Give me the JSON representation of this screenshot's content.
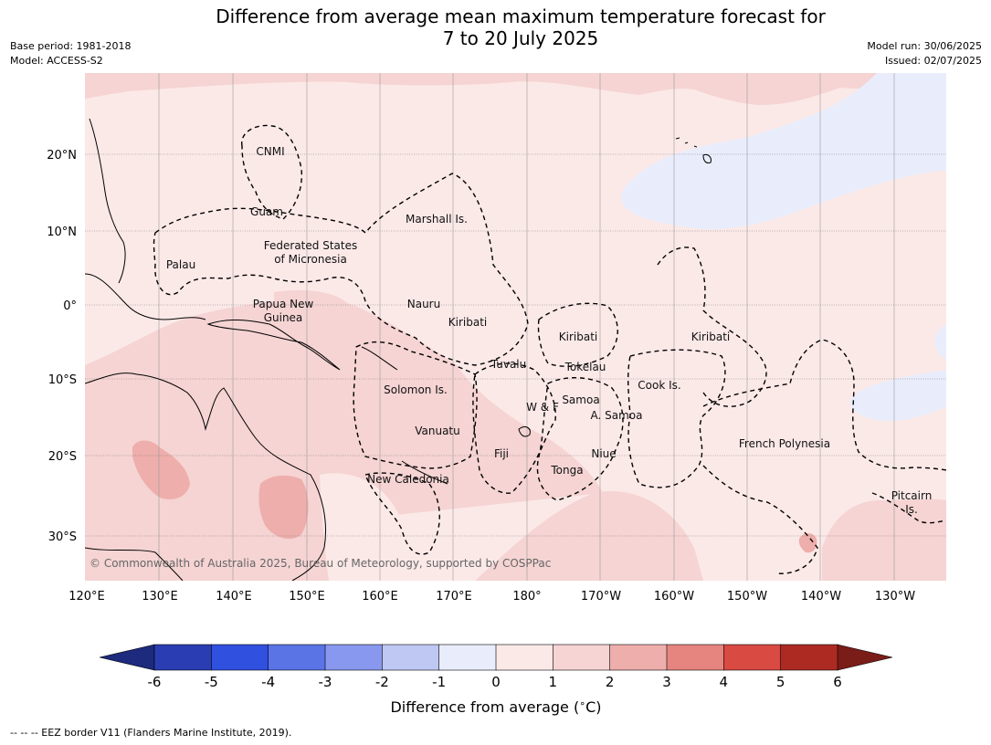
{
  "title_line1": "Difference from average mean maximum temperature forecast for",
  "title_line2": "7 to 20 July 2025",
  "meta_left": [
    "Base period: 1981-2018",
    "Model: ACCESS-S2"
  ],
  "meta_right": [
    "Model run: 30/06/2025",
    "Issued: 02/07/2025"
  ],
  "lon_labels": [
    "120°E",
    "130°E",
    "140°E",
    "150°E",
    "160°E",
    "170°E",
    "180°",
    "170°W",
    "160°W",
    "150°W",
    "140°W",
    "130°W"
  ],
  "lat_labels": [
    "20°N",
    "10°N",
    "0°",
    "10°S",
    "20°S",
    "30°S"
  ],
  "places": [
    {
      "name": "CNMI"
    },
    {
      "name": "Guam"
    },
    {
      "name": "Marshall Is."
    },
    {
      "name": "Federated States"
    },
    {
      "name": "of Micronesia"
    },
    {
      "name": "Palau"
    },
    {
      "name": "Papua New"
    },
    {
      "name": "Guinea"
    },
    {
      "name": "Nauru"
    },
    {
      "name": "Kiribati"
    },
    {
      "name": "Kiribati"
    },
    {
      "name": "Kiribati"
    },
    {
      "name": "Tuvalu"
    },
    {
      "name": "Tokelau"
    },
    {
      "name": "Cook Is."
    },
    {
      "name": "Solomon Is."
    },
    {
      "name": "Samoa"
    },
    {
      "name": "W & F"
    },
    {
      "name": "A. Samoa"
    },
    {
      "name": "Vanuatu"
    },
    {
      "name": "Fiji"
    },
    {
      "name": "Niue"
    },
    {
      "name": "French Polynesia"
    },
    {
      "name": "Tonga"
    },
    {
      "name": "New Caledonia"
    },
    {
      "name": "Pitcairn"
    },
    {
      "name": "Is."
    }
  ],
  "copyright": "© Commonwealth of Australia 2025, Bureau of Meteorology, supported by COSPPac",
  "colorbar": {
    "ticks": [
      "-6",
      "-5",
      "-4",
      "-3",
      "-2",
      "-1",
      "0",
      "1",
      "2",
      "3",
      "4",
      "5",
      "6"
    ],
    "colors": [
      "#1d2a7d",
      "#2a3db3",
      "#3050e0",
      "#5a74e6",
      "#8898ee",
      "#bfc8f3",
      "#e9edfb",
      "#fbe9e8",
      "#f5d4d3",
      "#eeaeab",
      "#e68580",
      "#d84a42",
      "#ad2a22",
      "#7a1c18"
    ],
    "label": "Difference from average ($^\\circ$C)"
  },
  "footnote": "--  --  -- EEZ border V11 (Flanders Marine Institute, 2019)."
}
